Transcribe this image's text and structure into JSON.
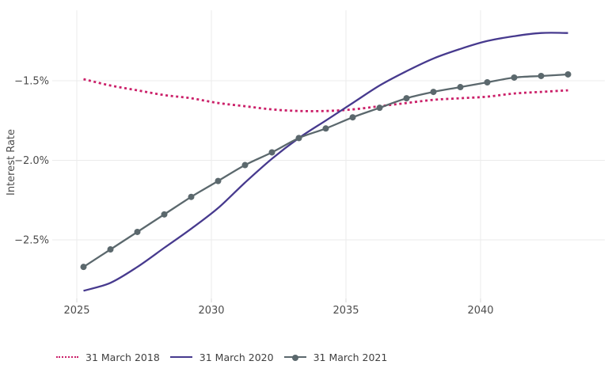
{
  "chart_data": {
    "type": "line",
    "title": "",
    "xlabel": "",
    "ylabel": "Interest Rate",
    "grid": true,
    "legend_position": "bottom",
    "x": [
      2025,
      2026,
      2027,
      2028,
      2029,
      2030,
      2031,
      2032,
      2033,
      2034,
      2035,
      2036,
      2037,
      2038,
      2039,
      2040,
      2041,
      2042,
      2043
    ],
    "x_ticks": {
      "values": [
        2025,
        2030,
        2035,
        2040
      ],
      "labels": [
        "2025",
        "2030",
        "2035",
        "2040"
      ]
    },
    "y_ticks": {
      "values": [
        -1.5,
        -2.0,
        -2.5
      ],
      "labels": [
        "−1.5%",
        "−2.0%",
        "−2.5%"
      ]
    },
    "xlim": [
      2024.2,
      2044.6
    ],
    "ylim": [
      -2.95,
      -1.06
    ],
    "y_unit": "%",
    "series": [
      {
        "name": "31 March 2018",
        "color": "#cb2069",
        "style": "dotted",
        "marker": false,
        "values": [
          -1.49,
          -1.53,
          -1.56,
          -1.59,
          -1.61,
          -1.64,
          -1.66,
          -1.68,
          -1.69,
          -1.69,
          -1.68,
          -1.66,
          -1.64,
          -1.62,
          -1.61,
          -1.6,
          -1.58,
          -1.57,
          -1.56
        ]
      },
      {
        "name": "31 March 2020",
        "color": "#473a8e",
        "style": "solid",
        "marker": false,
        "values": [
          -2.82,
          -2.77,
          -2.67,
          -2.55,
          -2.43,
          -2.3,
          -2.14,
          -1.99,
          -1.86,
          -1.75,
          -1.64,
          -1.53,
          -1.44,
          -1.36,
          -1.3,
          -1.25,
          -1.22,
          -1.2,
          -1.2
        ]
      },
      {
        "name": "31 March 2021",
        "color": "#5b686d",
        "style": "solid",
        "marker": true,
        "values": [
          -2.67,
          -2.56,
          -2.45,
          -2.34,
          -2.23,
          -2.13,
          -2.03,
          -1.95,
          -1.86,
          -1.8,
          -1.73,
          -1.67,
          -1.61,
          -1.57,
          -1.54,
          -1.51,
          -1.48,
          -1.47,
          -1.46
        ]
      }
    ]
  },
  "colors": {
    "background": "#ffffff",
    "gridline": "#ebebeb",
    "tick_text": "#4c4c4c",
    "legend_text": "#3f3f3f",
    "series_2018": "#cb2069",
    "series_2020": "#473a8e",
    "series_2021": "#5b686d"
  }
}
